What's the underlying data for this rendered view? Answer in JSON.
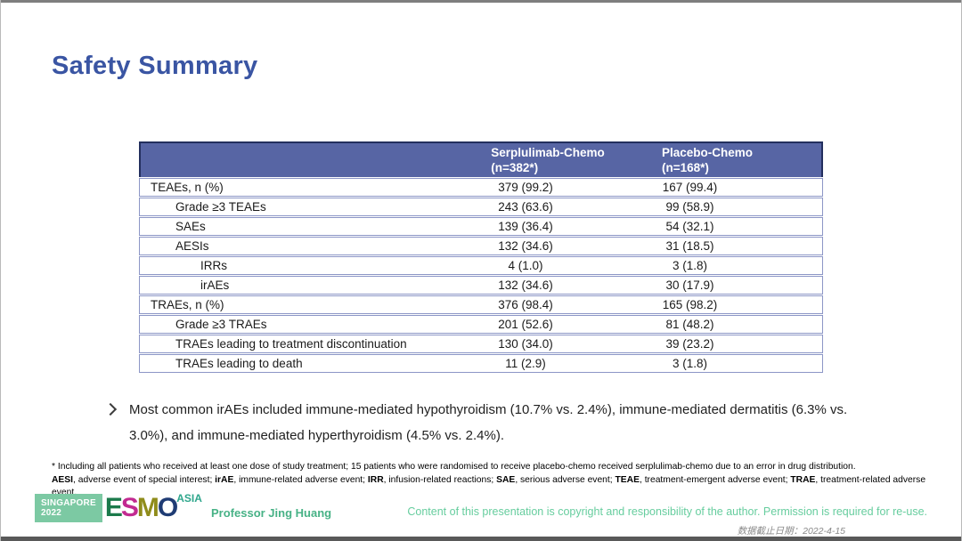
{
  "slide": {
    "title": "Safety Summary"
  },
  "table": {
    "header": {
      "serplulimab": {
        "name": "Serplulimab-Chemo",
        "n": "(n=382*)"
      },
      "placebo": {
        "name": "Placebo-Chemo",
        "n": "(n=168*)"
      }
    },
    "rows": [
      {
        "label": "TEAEs, n (%)",
        "indent": 0,
        "serplulimab": "379 (99.2)",
        "placebo": "167 (99.4)"
      },
      {
        "label": "Grade ≥3 TEAEs",
        "indent": 1,
        "serplulimab": "243 (63.6)",
        "placebo": "99 (58.9)"
      },
      {
        "label": "SAEs",
        "indent": 1,
        "serplulimab": "139 (36.4)",
        "placebo": "54 (32.1)"
      },
      {
        "label": "AESIs",
        "indent": 1,
        "serplulimab": "132 (34.6)",
        "placebo": "31 (18.5)"
      },
      {
        "label": "IRRs",
        "indent": 2,
        "serplulimab": "4 (1.0)",
        "placebo": "3 (1.8)"
      },
      {
        "label": "irAEs",
        "indent": 2,
        "serplulimab": "132 (34.6)",
        "placebo": "30 (17.9)"
      },
      {
        "label": "TRAEs, n (%)",
        "indent": 0,
        "serplulimab": "376 (98.4)",
        "placebo": "165 (98.2)"
      },
      {
        "label": "Grade ≥3 TRAEs",
        "indent": 1,
        "serplulimab": "201 (52.6)",
        "placebo": "81 (48.2)"
      },
      {
        "label": "TRAEs leading to treatment discontinuation",
        "indent": 1,
        "serplulimab": "130 (34.0)",
        "placebo": "39 (23.2)"
      },
      {
        "label": "TRAEs leading to death",
        "indent": 1,
        "serplulimab": "11 (2.9)",
        "placebo": "3 (1.8)"
      }
    ]
  },
  "bullet": {
    "text": "Most common irAEs included immune-mediated hypothyroidism (10.7% vs. 2.4%), immune-mediated dermatitis (6.3% vs. 3.0%), and immune-mediated hyperthyroidism (4.5% vs. 2.4%)."
  },
  "footnotes": {
    "line1": "* Including all patients who received at least one dose of study treatment; 15 patients who were randomised to receive placebo-chemo received serplulimab-chemo due to an error in drug distribution.",
    "line2_segments": [
      {
        "text": "AESI",
        "bold": true
      },
      {
        "text": ", adverse event of special interest; ",
        "bold": false
      },
      {
        "text": "irAE",
        "bold": true
      },
      {
        "text": ", immune-related adverse event; ",
        "bold": false
      },
      {
        "text": "IRR",
        "bold": true
      },
      {
        "text": ", infusion-related reactions; ",
        "bold": false
      },
      {
        "text": "SAE",
        "bold": true
      },
      {
        "text": ", serious adverse event; ",
        "bold": false
      },
      {
        "text": "TEAE",
        "bold": true
      },
      {
        "text": ", treatment-emergent adverse event; ",
        "bold": false
      },
      {
        "text": "TRAE",
        "bold": true
      },
      {
        "text": ", treatment-related adverse event.",
        "bold": false
      }
    ]
  },
  "footer": {
    "logo": {
      "badge_line1": "SINGAPORE",
      "badge_line2": "2022",
      "letters": [
        {
          "char": "E",
          "color": "#1b7a4b"
        },
        {
          "char": "S",
          "color": "#c22a91"
        },
        {
          "char": "M",
          "color": "#8f8c1b"
        },
        {
          "char": "O",
          "color": "#1f3c74"
        }
      ],
      "suffix": "ASIA"
    },
    "presenter": "Professor Jing Huang",
    "copyright": "Content of this presentation is copyright and responsibility of the author. Permission is required for re-use.",
    "data_cutoff": "数据截止日期：2022-4-15"
  },
  "colors": {
    "title_blue": "#3a55a3",
    "table_header_bg": "#5765a4",
    "table_header_outline": "#232f5e",
    "table_border": "#8c96c6",
    "accent_green": "#47b286",
    "copyright_green": "#66cd9e",
    "badge_green": "#7cc9a3",
    "asia_teal": "#2ea68c"
  }
}
